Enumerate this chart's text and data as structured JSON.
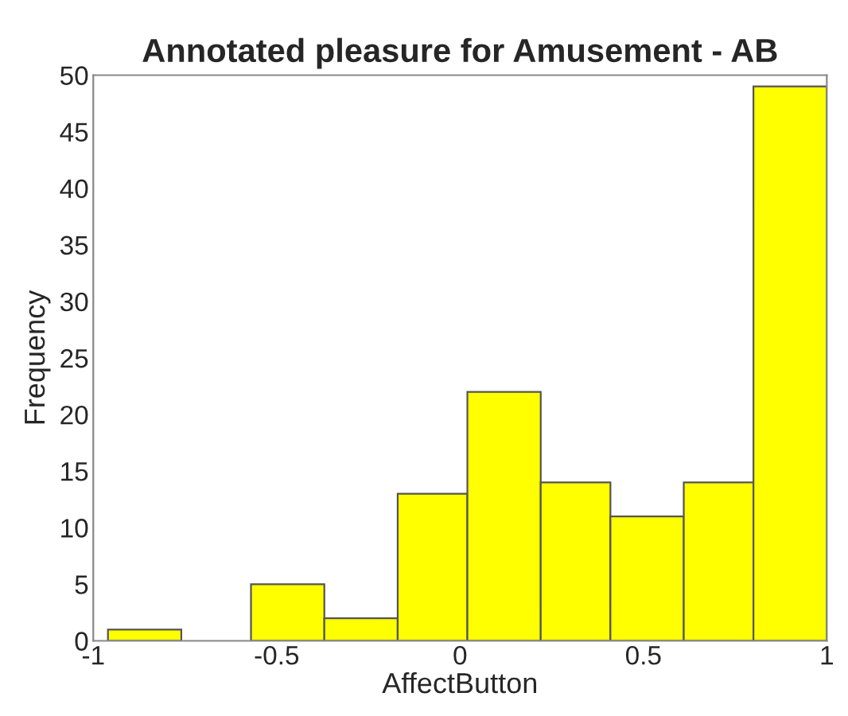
{
  "chart_data": {
    "type": "histogram",
    "title": "Annotated pleasure for Amusement - AB",
    "xlabel": "AffectButton",
    "ylabel": "Frequency",
    "bins": [
      -0.96,
      -0.76,
      -0.57,
      -0.37,
      -0.17,
      0.02,
      0.22,
      0.41,
      0.61,
      0.8,
      1.0
    ],
    "values": [
      1,
      0,
      5,
      2,
      13,
      22,
      14,
      11,
      14,
      49
    ],
    "color": "#ffff00",
    "xlim": [
      -1,
      1
    ],
    "xticks": [
      -1,
      -0.5,
      0,
      0.5,
      1
    ],
    "ylim": [
      0,
      50
    ],
    "yticks": [
      0,
      5,
      10,
      15,
      20,
      25,
      30,
      35,
      40,
      45,
      50
    ],
    "grid": false
  }
}
